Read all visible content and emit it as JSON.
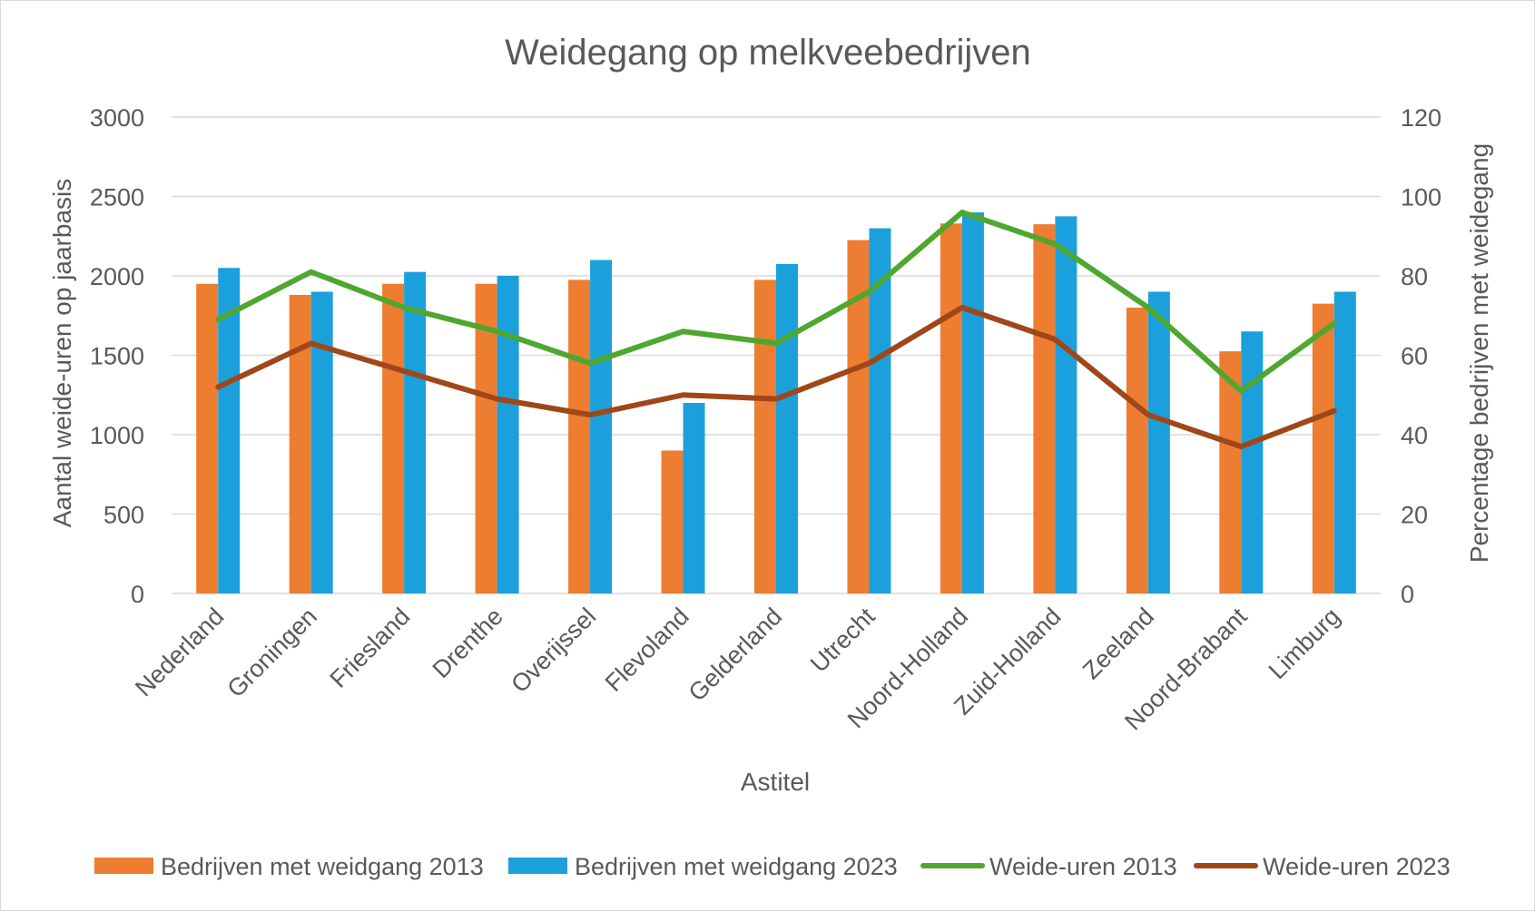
{
  "chart_data": {
    "type": "bar",
    "title": "Weidegang op melkveebedrijven",
    "xlabel": "Astitel",
    "ylabel": "Aantal weide-uren op jaarbasis",
    "y2label": "Percentage bedrijven met weidegang",
    "ylim": [
      0,
      3000
    ],
    "y2lim": [
      0,
      120
    ],
    "yticks": [
      "0",
      "500",
      "1000",
      "1500",
      "2000",
      "2500",
      "3000"
    ],
    "y2ticks": [
      "0",
      "20",
      "40",
      "60",
      "80",
      "100",
      "120"
    ],
    "grid": true,
    "legend_position": "bottom",
    "categories": [
      "Nederland",
      "Groningen",
      "Friesland",
      "Drenthe",
      "Overijssel",
      "Flevoland",
      "Gelderland",
      "Utrecht",
      "Noord-Holland",
      "Zuid-Holland",
      "Zeeland",
      "Noord-Brabant",
      "Limburg"
    ],
    "series": [
      {
        "name": "Bedrijven met weidgang  2013",
        "type": "bar",
        "color": "#ED7D31",
        "values": [
          1950,
          1880,
          1950,
          1950,
          1975,
          900,
          1975,
          2225,
          2330,
          2325,
          1800,
          1525,
          1825
        ]
      },
      {
        "name": "Bedrijven met weidgang  2023",
        "type": "bar",
        "color": "#1CA0DB",
        "values": [
          2050,
          1900,
          2025,
          2000,
          2100,
          1200,
          2075,
          2300,
          2400,
          2375,
          1900,
          1650,
          1900
        ]
      },
      {
        "name": "Weide-uren 2013",
        "type": "line",
        "color": "#4EA72E",
        "values": [
          69,
          81,
          72,
          66,
          58,
          66,
          63,
          76,
          96,
          88,
          72,
          51,
          68
        ]
      },
      {
        "name": "Weide-uren 2023",
        "type": "line",
        "color": "#A0471A",
        "values": [
          52,
          63,
          56,
          49,
          45,
          50,
          49,
          58,
          72,
          64,
          45,
          37,
          46
        ]
      }
    ]
  }
}
